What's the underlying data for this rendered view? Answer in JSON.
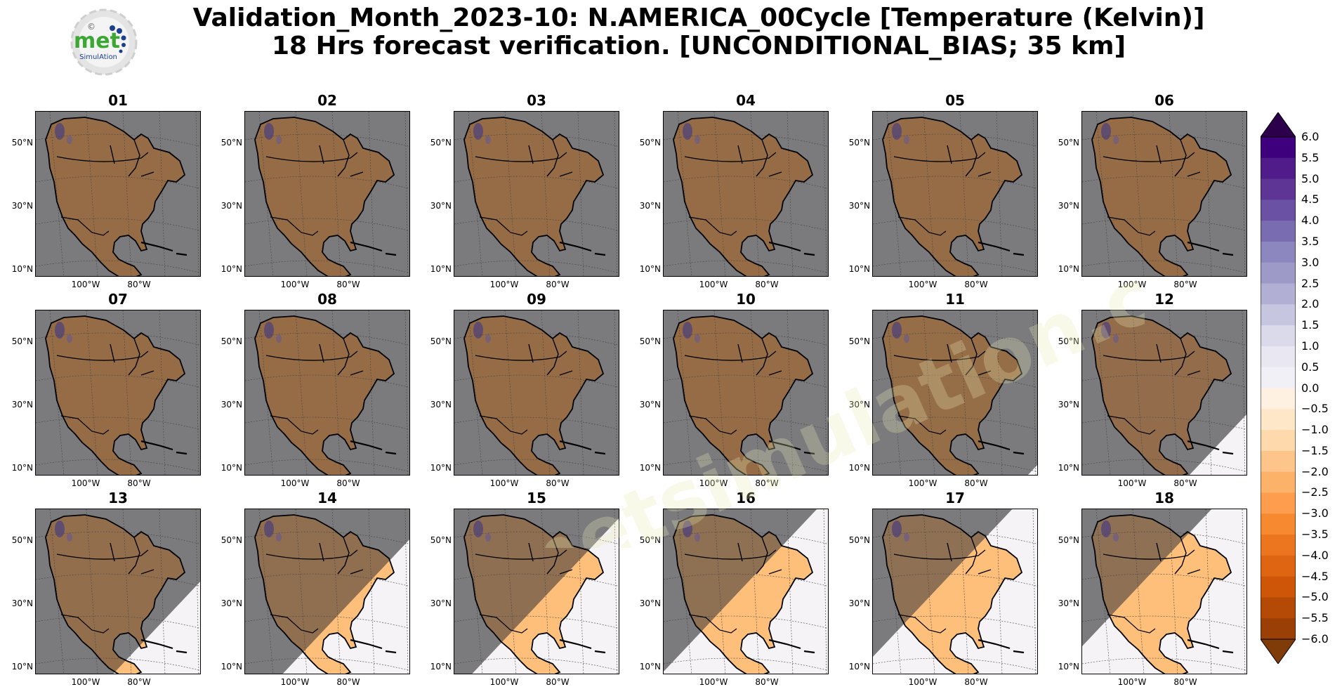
{
  "header": {
    "title_line1": "Validation_Month_2023-10: N.AMERICA_00Cycle [Temperature (Kelvin)]",
    "title_line2": "18 Hrs forecast verification. [UNCONDITIONAL_BIAS; 35 km]"
  },
  "logo": {
    "text_main": "met",
    "text_sub": "SimulAtion",
    "text_mark": "©"
  },
  "watermark": {
    "text": "www.metsimulation.com"
  },
  "panels": [
    {
      "label": "01",
      "clear_fraction": 0.0
    },
    {
      "label": "02",
      "clear_fraction": 0.0
    },
    {
      "label": "03",
      "clear_fraction": 0.0
    },
    {
      "label": "04",
      "clear_fraction": 0.0
    },
    {
      "label": "05",
      "clear_fraction": 0.0
    },
    {
      "label": "06",
      "clear_fraction": 0.0
    },
    {
      "label": "07",
      "clear_fraction": 0.0
    },
    {
      "label": "08",
      "clear_fraction": 0.0
    },
    {
      "label": "09",
      "clear_fraction": 0.0
    },
    {
      "label": "10",
      "clear_fraction": 0.0
    },
    {
      "label": "11",
      "clear_fraction": 0.06
    },
    {
      "label": "12",
      "clear_fraction": 0.3
    },
    {
      "label": "13",
      "clear_fraction": 0.45
    },
    {
      "label": "14",
      "clear_fraction": 0.65
    },
    {
      "label": "15",
      "clear_fraction": 0.75
    },
    {
      "label": "16",
      "clear_fraction": 0.85
    },
    {
      "label": "17",
      "clear_fraction": 0.92
    },
    {
      "label": "18",
      "clear_fraction": 0.97
    }
  ],
  "axes": {
    "lat_labels": [
      "50°N",
      "30°N",
      "10°N"
    ],
    "lon_labels": [
      "100°W",
      "80°W"
    ]
  },
  "colorbar": {
    "labels": [
      "6.0",
      "5.5",
      "5.0",
      "4.5",
      "4.0",
      "3.5",
      "3.0",
      "2.5",
      "2.0",
      "1.5",
      "1.0",
      "0.5",
      "0.0",
      "−0.5",
      "−1.0",
      "−1.5",
      "−2.0",
      "−2.5",
      "−3.0",
      "−3.5",
      "−4.0",
      "−4.5",
      "−5.0",
      "−5.5",
      "−6.0"
    ],
    "colors": [
      "#3f007d",
      "#4f1c8a",
      "#5e3594",
      "#6a51a3",
      "#7a6cb0",
      "#8c88bf",
      "#9e9ac8",
      "#b2afd4",
      "#c6c6e1",
      "#dadaeb",
      "#e8e7f2",
      "#f2f0f7",
      "#fff1e1",
      "#fee6c8",
      "#fdd9ab",
      "#fdc589",
      "#fdb26a",
      "#fd9d4d",
      "#f78a31",
      "#ec7620",
      "#e06512",
      "#cd5609",
      "#b54a06",
      "#9a3f05",
      "#7f3b08"
    ],
    "extend_top": "#2d004b",
    "extend_bottom": "#7f3b08"
  }
}
